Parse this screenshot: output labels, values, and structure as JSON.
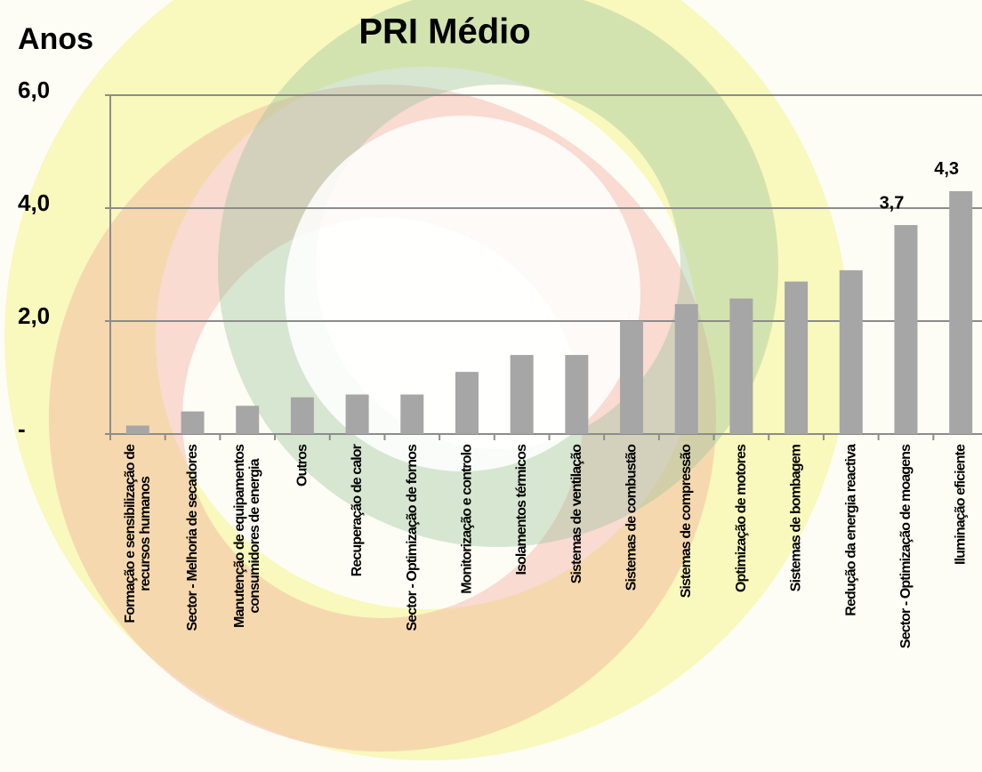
{
  "chart_data": {
    "type": "bar",
    "title": "PRI Médio",
    "y_label": "Anos",
    "categories": [
      "Formação e sensibilização de\nrecursos humanos",
      "Sector - Melhoria de secadores",
      "Manutenção de equipamentos\nconsumidores de energia",
      "Outros",
      "Recuperação de calor",
      "Sector - Optimização de fornos",
      "Monitorização e controlo",
      "Isolamentos térmicos",
      "Sistemas de ventilação",
      "Sistemas de combustão",
      "Sistemas de compressão",
      "Optimização de motores",
      "Sistemas de bombagem",
      "Redução da energia reactiva",
      "Sector - Optimização de moagens",
      "Iluminação eficiente"
    ],
    "values": [
      0.15,
      0.4,
      0.5,
      0.65,
      0.7,
      0.7,
      1.1,
      1.4,
      1.4,
      2.0,
      2.3,
      2.4,
      2.7,
      2.9,
      3.7,
      4.3
    ],
    "value_labels": [
      null,
      null,
      null,
      null,
      null,
      null,
      null,
      null,
      null,
      null,
      null,
      null,
      null,
      null,
      "3,7",
      "4,3"
    ],
    "color": "#a6a6a6",
    "ylim": [
      0,
      6
    ],
    "yticks": [
      {
        "value": 0,
        "label": "-"
      },
      {
        "value": 2,
        "label": "2,0"
      },
      {
        "value": 4,
        "label": "4,0"
      },
      {
        "value": 6,
        "label": "6,0"
      }
    ],
    "grid": true
  }
}
